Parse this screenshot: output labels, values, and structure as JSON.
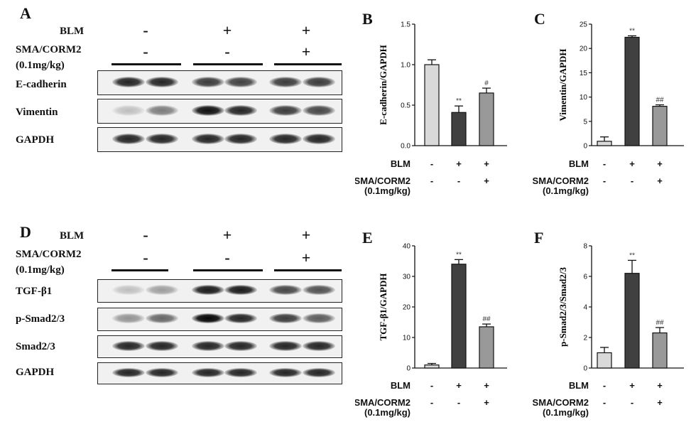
{
  "panels": {
    "A": "A",
    "B": "B",
    "C": "C",
    "D": "D",
    "E": "E",
    "F": "F"
  },
  "western_blot_top": {
    "condition_labels": [
      "BLM",
      "SMA/CORM2",
      "(0.1mg/kg)"
    ],
    "blm_signs": [
      "-",
      "+",
      "+"
    ],
    "sma_signs": [
      "-",
      "-",
      "+"
    ],
    "rows": [
      {
        "label": "E-cadherin",
        "intensity": [
          0.85,
          0.85,
          0.75,
          0.72,
          0.75,
          0.75
        ]
      },
      {
        "label": "Vimentin",
        "intensity": [
          0.15,
          0.45,
          0.95,
          0.85,
          0.75,
          0.7
        ]
      },
      {
        "label": "GAPDH",
        "intensity": [
          0.85,
          0.85,
          0.85,
          0.85,
          0.85,
          0.85
        ]
      }
    ]
  },
  "western_blot_bottom": {
    "condition_labels": [
      "BLM",
      "SMA/CORM2",
      "(0.1mg/kg)"
    ],
    "blm_signs": [
      "-",
      "+",
      "+"
    ],
    "sma_signs": [
      "-",
      "-",
      "+"
    ],
    "rows": [
      {
        "label": "TGF-β1",
        "intensity": [
          0.15,
          0.3,
          0.9,
          0.9,
          0.7,
          0.65
        ]
      },
      {
        "label": "p-Smad2/3",
        "intensity": [
          0.35,
          0.55,
          1.0,
          0.85,
          0.75,
          0.6
        ]
      },
      {
        "label": "Smad2/3",
        "intensity": [
          0.85,
          0.85,
          0.85,
          0.85,
          0.85,
          0.85
        ]
      },
      {
        "label": "GAPDH",
        "intensity": [
          0.85,
          0.85,
          0.85,
          0.85,
          0.85,
          0.85
        ]
      }
    ]
  },
  "chart_data": [
    {
      "panel": "B",
      "type": "bar",
      "ylabel": "E-cadherin/GAPDH",
      "ylim": [
        0,
        1.5
      ],
      "yticks": [
        0.0,
        0.5,
        1.0,
        1.5
      ],
      "values": [
        1.0,
        0.41,
        0.65
      ],
      "errors": [
        0.06,
        0.08,
        0.06
      ],
      "annotations": [
        "",
        "**",
        "#"
      ],
      "colors": [
        "#d9d9d9",
        "#404040",
        "#999999"
      ],
      "row_labels": [
        "BLM",
        "SMA/CORM2",
        "(0.1mg/kg)"
      ],
      "blm": [
        "-",
        "+",
        "+"
      ],
      "sma": [
        "-",
        "-",
        "+"
      ]
    },
    {
      "panel": "C",
      "type": "bar",
      "ylabel": "Vimentin/GAPDH",
      "ylim": [
        0,
        25
      ],
      "yticks": [
        0,
        5,
        10,
        15,
        20,
        25
      ],
      "values": [
        0.9,
        22.3,
        8.1
      ],
      "errors": [
        0.9,
        0.3,
        0.3
      ],
      "annotations": [
        "",
        "**",
        "##"
      ],
      "colors": [
        "#d9d9d9",
        "#404040",
        "#999999"
      ],
      "row_labels": [
        "BLM",
        "SMA/CORM2",
        "(0.1mg/kg)"
      ],
      "blm": [
        "-",
        "+",
        "+"
      ],
      "sma": [
        "-",
        "-",
        "+"
      ]
    },
    {
      "panel": "E",
      "type": "bar",
      "ylabel": "TGF-β1/GAPDH",
      "ylim": [
        0,
        40
      ],
      "yticks": [
        0,
        10,
        20,
        30,
        40
      ],
      "values": [
        1.0,
        34.0,
        13.5
      ],
      "errors": [
        0.5,
        1.5,
        0.9
      ],
      "annotations": [
        "",
        "**",
        "##"
      ],
      "colors": [
        "#d9d9d9",
        "#404040",
        "#999999"
      ],
      "row_labels": [
        "BLM",
        "SMA/CORM2",
        "(0.1mg/kg)"
      ],
      "blm": [
        "-",
        "+",
        "+"
      ],
      "sma": [
        "-",
        "-",
        "+"
      ]
    },
    {
      "panel": "F",
      "type": "bar",
      "ylabel": "p-Smad2/3/Smad2/3",
      "ylim": [
        0,
        8
      ],
      "yticks": [
        0,
        2,
        4,
        6,
        8
      ],
      "values": [
        1.0,
        6.2,
        2.3
      ],
      "errors": [
        0.35,
        0.85,
        0.35
      ],
      "annotations": [
        "",
        "**",
        "##"
      ],
      "colors": [
        "#d9d9d9",
        "#404040",
        "#999999"
      ],
      "row_labels": [
        "BLM",
        "SMA/CORM2",
        "(0.1mg/kg)"
      ],
      "blm": [
        "-",
        "+",
        "+"
      ],
      "sma": [
        "-",
        "-",
        "+"
      ]
    }
  ]
}
